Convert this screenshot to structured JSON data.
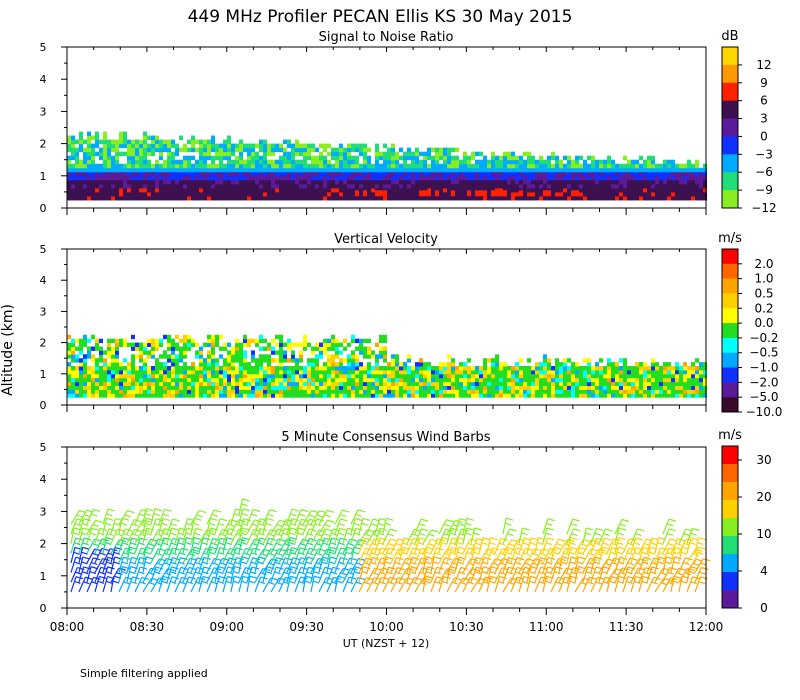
{
  "title": "449 MHz Profiler PECAN Ellis KS 30 May 2015",
  "footnote": "Simple filtering applied",
  "chart_data": [
    {
      "type": "heatmap",
      "title": "Signal to Noise Ratio",
      "ylabel": "Altitude (km)",
      "ylim": [
        0,
        5
      ],
      "yticks": [
        "0",
        "1",
        "2",
        "3",
        "4",
        "5"
      ],
      "x_range": [
        "08:00",
        "12:00"
      ],
      "colorbar": {
        "unit": "dB",
        "labels": [
          "12",
          "9",
          "6",
          "3",
          "0",
          "−3",
          "−6",
          "−9",
          "−12"
        ],
        "colors": [
          "#ffd700",
          "#ff9900",
          "#ff2000",
          "#3d1050",
          "#5a1a9a",
          "#1030ff",
          "#00aaff",
          "#22dd77",
          "#88ee22"
        ]
      }
    },
    {
      "type": "heatmap",
      "title": "Vertical Velocity",
      "ylabel": "Altitude (km)",
      "ylim": [
        0,
        5
      ],
      "yticks": [
        "0",
        "1",
        "2",
        "3",
        "4",
        "5"
      ],
      "x_range": [
        "08:00",
        "12:00"
      ],
      "colorbar": {
        "unit": "m/s",
        "labels": [
          "2.0",
          "1.0",
          "0.5",
          "0.2",
          "0.0",
          "−0.2",
          "−0.5",
          "−1.0",
          "−2.0",
          "−5.0",
          "−10.0"
        ],
        "colors": [
          "#ff0000",
          "#ff6600",
          "#ffa500",
          "#ffd000",
          "#ffff00",
          "#22dd22",
          "#00ffff",
          "#00aaff",
          "#1030ff",
          "#5a1a9a",
          "#3a0a2a"
        ]
      }
    },
    {
      "type": "wind-barbs",
      "title": "5 Minute Consensus Wind Barbs",
      "ylabel": "Altitude (km)",
      "ylim": [
        0,
        5
      ],
      "yticks": [
        "0",
        "1",
        "2",
        "3",
        "4",
        "5"
      ],
      "xlabel": "UT  (NZST + 12)",
      "xticks": [
        "08:00",
        "08:30",
        "09:00",
        "09:30",
        "10:00",
        "10:30",
        "11:00",
        "11:30",
        "12:00"
      ],
      "colorbar": {
        "unit": "m/s",
        "labels": [
          "30",
          "20",
          "10",
          "4",
          "0"
        ],
        "colors": [
          "#ff0000",
          "#ff6600",
          "#ffa500",
          "#ffd000",
          "#88ee22",
          "#22dd77",
          "#00aaff",
          "#1030ff",
          "#5a1a9a"
        ]
      }
    }
  ]
}
